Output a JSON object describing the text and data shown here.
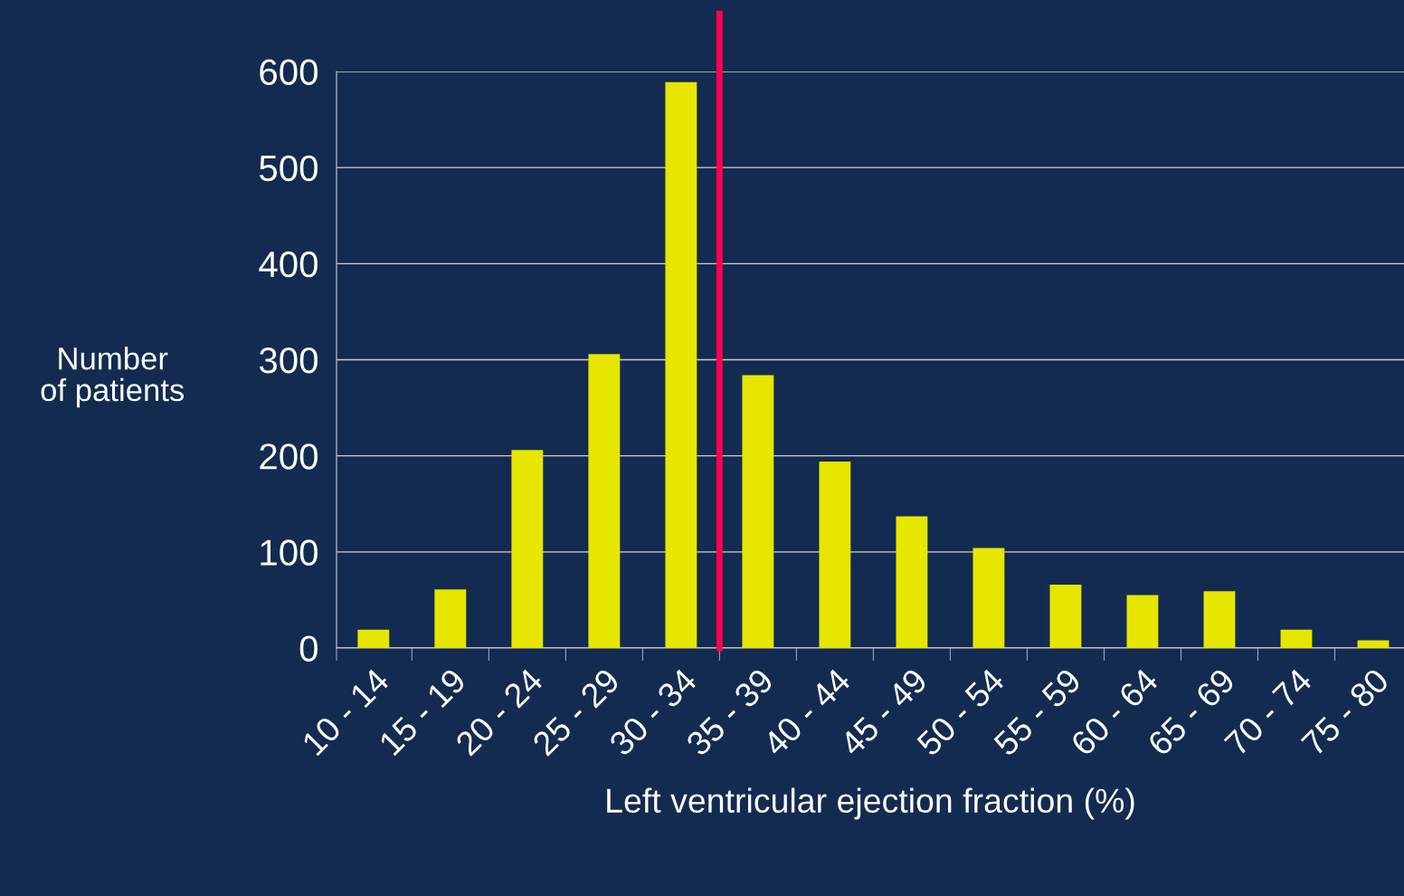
{
  "chart_data": {
    "type": "bar",
    "xlabel": "Left ventricular ejection fraction (%)",
    "ylabel": "Number\nof patients",
    "categories": [
      "10 - 14",
      "15 - 19",
      "20 - 24",
      "25 - 29",
      "30 - 34",
      "35 - 39",
      "40 - 44",
      "45 - 49",
      "50 - 54",
      "55 - 59",
      "60 - 64",
      "65 - 69",
      "70 - 74",
      "75 - 80"
    ],
    "values": [
      19,
      61,
      206,
      306,
      589,
      284,
      194,
      137,
      104,
      66,
      55,
      59,
      19,
      8
    ],
    "color": "#e6e600",
    "ylim": [
      0,
      600
    ],
    "yticks": [
      0,
      100,
      200,
      300,
      400,
      500,
      600
    ],
    "grid": "y",
    "legend": false,
    "ref_lines": [
      {
        "axis": "x",
        "value": "35 - 39",
        "color": "#ff0050"
      }
    ]
  }
}
